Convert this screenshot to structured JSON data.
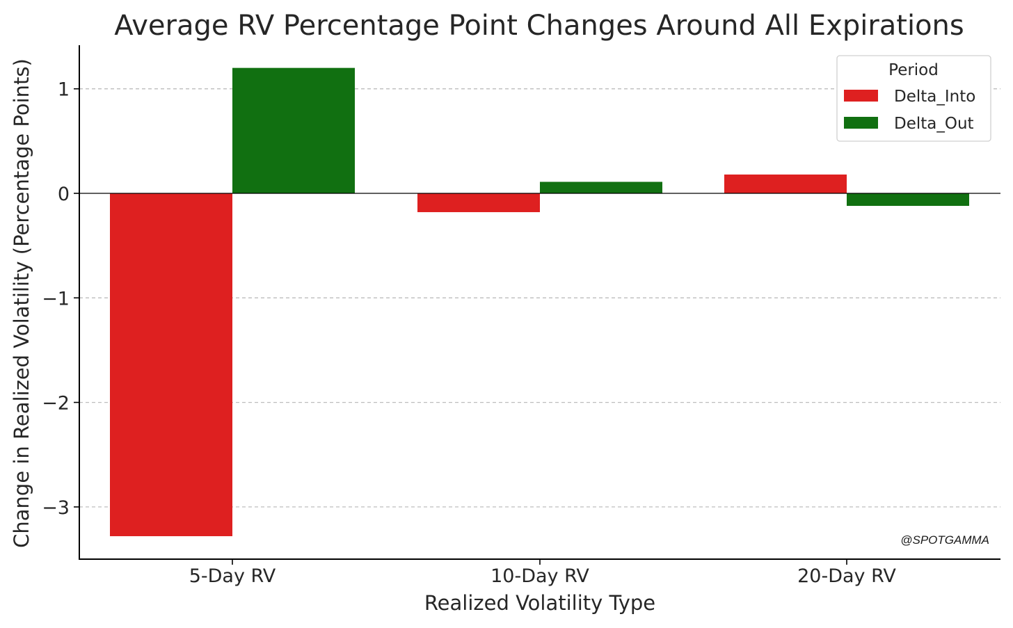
{
  "chart_data": {
    "type": "bar",
    "title": "Average RV Percentage Point Changes Around All Expirations",
    "xlabel": "Realized Volatility Type",
    "ylabel": "Change in Realized Volatility (Percentage Points)",
    "categories": [
      "5-Day RV",
      "10-Day RV",
      "20-Day RV"
    ],
    "series": [
      {
        "name": "Delta_Into",
        "color": "#de2020",
        "values": [
          -3.28,
          -0.18,
          0.18
        ]
      },
      {
        "name": "Delta_Out",
        "color": "#117011",
        "values": [
          1.2,
          0.11,
          -0.12
        ]
      }
    ],
    "ylim": [
      -3.5,
      1.42
    ],
    "yticks": [
      1,
      0,
      -1,
      -2,
      -3
    ],
    "ytick_labels": [
      "1",
      "0",
      "−1",
      "−2",
      "−3"
    ],
    "grid": "y-dashed",
    "legend": {
      "title": "Period",
      "placement": "top-right"
    }
  },
  "watermark": "@SPOTGAMMA"
}
